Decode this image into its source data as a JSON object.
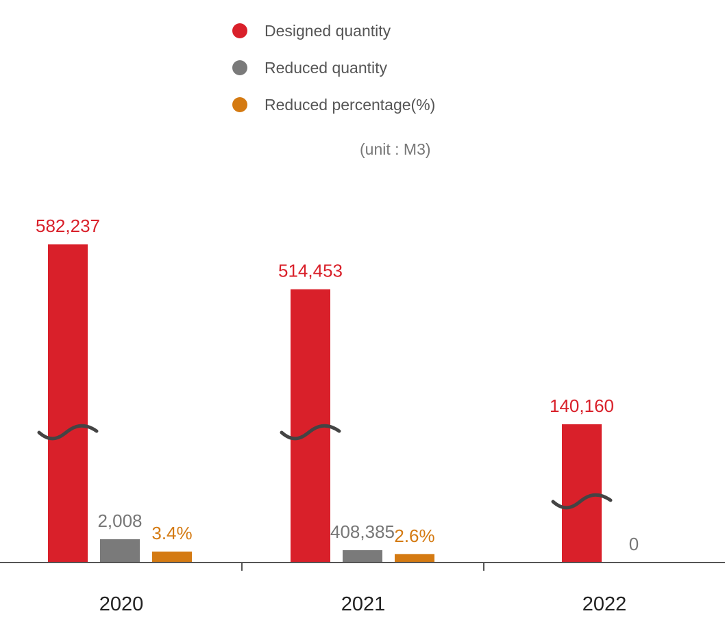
{
  "chart_data": {
    "type": "bar",
    "unit_label": "(unit : M3)",
    "categories": [
      "2020",
      "2021",
      "2022"
    ],
    "series": [
      {
        "name": "Designed quantity",
        "color": "#d9202a",
        "values": [
          582237,
          514453,
          140160
        ],
        "labels": [
          "582,237",
          "514,453",
          "140,160"
        ]
      },
      {
        "name": "Reduced quantity",
        "color": "#7a7a7a",
        "values": [
          2008,
          408385,
          0
        ],
        "labels": [
          "2,008",
          "408,385",
          "0"
        ]
      },
      {
        "name": "Reduced percentage(%)",
        "color": "#d47a12",
        "values": [
          3.4,
          2.6,
          null
        ],
        "labels": [
          "3.4%",
          "2.6%",
          ""
        ]
      }
    ],
    "axis_break": true,
    "grid": false,
    "legend_position": "top"
  }
}
